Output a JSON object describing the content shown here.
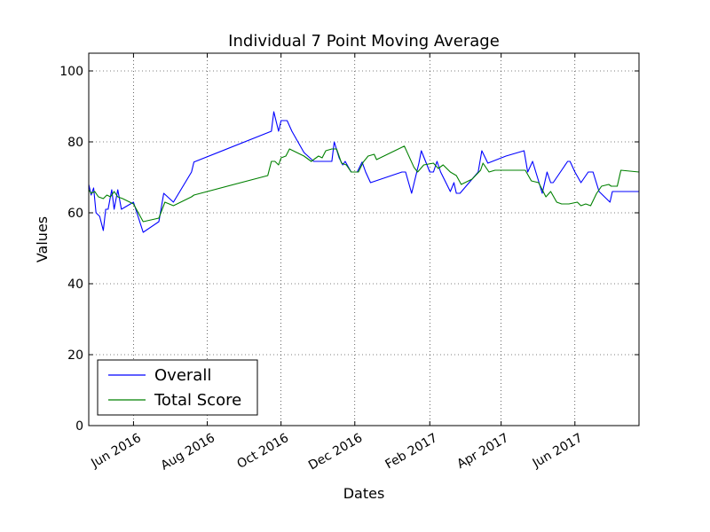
{
  "chart_data": {
    "type": "line",
    "title": "Individual 7 Point Moving Average",
    "xlabel": "Dates",
    "ylabel": "Values",
    "xlim": [
      "2016-04-25",
      "2017-07-24"
    ],
    "ylim": [
      0,
      105
    ],
    "x_ticks": [
      {
        "date": "2016-06-01",
        "label": "Jun 2016"
      },
      {
        "date": "2016-08-01",
        "label": "Aug 2016"
      },
      {
        "date": "2016-10-01",
        "label": "Oct 2016"
      },
      {
        "date": "2016-12-01",
        "label": "Dec 2016"
      },
      {
        "date": "2017-02-01",
        "label": "Feb 2017"
      },
      {
        "date": "2017-04-01",
        "label": "Apr 2017"
      },
      {
        "date": "2017-06-01",
        "label": "Jun 2017"
      }
    ],
    "y_ticks": [
      0,
      20,
      40,
      60,
      80,
      100
    ],
    "grid": true,
    "legend_position": "lower-left",
    "series": [
      {
        "name": "Overall",
        "color": "#0000ff",
        "points": [
          [
            "2016-04-25",
            68
          ],
          [
            "2016-04-27",
            65
          ],
          [
            "2016-04-29",
            67
          ],
          [
            "2016-05-01",
            60
          ],
          [
            "2016-05-04",
            59
          ],
          [
            "2016-05-07",
            55
          ],
          [
            "2016-05-09",
            61
          ],
          [
            "2016-05-11",
            61
          ],
          [
            "2016-05-14",
            66.5
          ],
          [
            "2016-05-16",
            61
          ],
          [
            "2016-05-19",
            66.5
          ],
          [
            "2016-05-22",
            61
          ],
          [
            "2016-06-01",
            63
          ],
          [
            "2016-06-09",
            54.5
          ],
          [
            "2016-06-22",
            57.5
          ],
          [
            "2016-06-26",
            65.5
          ],
          [
            "2016-07-04",
            63
          ],
          [
            "2016-07-19",
            71.5
          ],
          [
            "2016-07-21",
            74.3
          ],
          [
            "2016-09-23",
            83
          ],
          [
            "2016-09-25",
            88.5
          ],
          [
            "2016-09-29",
            83
          ],
          [
            "2016-10-01",
            86
          ],
          [
            "2016-10-04",
            86
          ],
          [
            "2016-10-06",
            86
          ],
          [
            "2016-10-10",
            83
          ],
          [
            "2016-10-20",
            77
          ],
          [
            "2016-10-28",
            74.5
          ],
          [
            "2016-11-02",
            74.5
          ],
          [
            "2016-11-12",
            74.5
          ],
          [
            "2016-11-14",
            80
          ],
          [
            "2016-11-18",
            75.5
          ],
          [
            "2016-11-21",
            73.5
          ],
          [
            "2016-11-23",
            74.5
          ],
          [
            "2016-11-28",
            71.5
          ],
          [
            "2016-12-03",
            71.5
          ],
          [
            "2016-12-07",
            74.3
          ],
          [
            "2016-12-10",
            71.5
          ],
          [
            "2016-12-14",
            68.5
          ],
          [
            "2017-01-09",
            71.5
          ],
          [
            "2017-01-12",
            71.5
          ],
          [
            "2017-01-17",
            65.5
          ],
          [
            "2017-01-23",
            74
          ],
          [
            "2017-01-25",
            77.5
          ],
          [
            "2017-02-01",
            71.5
          ],
          [
            "2017-02-04",
            71.5
          ],
          [
            "2017-02-07",
            74.5
          ],
          [
            "2017-02-10",
            71.5
          ],
          [
            "2017-02-18",
            66
          ],
          [
            "2017-02-21",
            68.5
          ],
          [
            "2017-02-23",
            65.5
          ],
          [
            "2017-02-26",
            65.5
          ],
          [
            "2017-03-13",
            71.5
          ],
          [
            "2017-03-16",
            77.5
          ],
          [
            "2017-03-21",
            74
          ],
          [
            "2017-04-05",
            76
          ],
          [
            "2017-04-20",
            77.5
          ],
          [
            "2017-04-23",
            71.5
          ],
          [
            "2017-04-27",
            74.5
          ],
          [
            "2017-05-05",
            65.5
          ],
          [
            "2017-05-09",
            71.5
          ],
          [
            "2017-05-12",
            68.5
          ],
          [
            "2017-05-14",
            68.5
          ],
          [
            "2017-05-26",
            74.5
          ],
          [
            "2017-05-28",
            74.5
          ],
          [
            "2017-06-01",
            71.5
          ],
          [
            "2017-06-06",
            68.5
          ],
          [
            "2017-06-12",
            71.5
          ],
          [
            "2017-06-16",
            71.5
          ],
          [
            "2017-06-21",
            66
          ],
          [
            "2017-06-30",
            63
          ],
          [
            "2017-07-02",
            66
          ],
          [
            "2017-07-24",
            66
          ]
        ]
      },
      {
        "name": "Total Score",
        "color": "#008000",
        "points": [
          [
            "2016-04-25",
            66.5
          ],
          [
            "2016-04-27",
            65.5
          ],
          [
            "2016-04-30",
            66
          ],
          [
            "2016-05-03",
            64.5
          ],
          [
            "2016-05-07",
            64
          ],
          [
            "2016-05-10",
            65
          ],
          [
            "2016-05-13",
            64.5
          ],
          [
            "2016-05-16",
            66
          ],
          [
            "2016-05-19",
            64.5
          ],
          [
            "2016-05-23",
            64
          ],
          [
            "2016-06-01",
            62.5
          ],
          [
            "2016-06-09",
            57.5
          ],
          [
            "2016-06-22",
            58.5
          ],
          [
            "2016-06-27",
            63
          ],
          [
            "2016-07-04",
            62
          ],
          [
            "2016-07-19",
            64.5
          ],
          [
            "2016-07-21",
            65
          ],
          [
            "2016-09-20",
            70.5
          ],
          [
            "2016-09-23",
            74.5
          ],
          [
            "2016-09-26",
            74.5
          ],
          [
            "2016-09-29",
            73.5
          ],
          [
            "2016-10-01",
            75.5
          ],
          [
            "2016-10-05",
            76
          ],
          [
            "2016-10-08",
            78
          ],
          [
            "2016-10-20",
            76
          ],
          [
            "2016-10-26",
            74.5
          ],
          [
            "2016-11-01",
            76
          ],
          [
            "2016-11-04",
            75.5
          ],
          [
            "2016-11-07",
            77.5
          ],
          [
            "2016-11-12",
            78
          ],
          [
            "2016-11-16",
            78
          ],
          [
            "2016-11-20",
            74
          ],
          [
            "2016-11-24",
            73.5
          ],
          [
            "2016-11-28",
            71.5
          ],
          [
            "2016-12-04",
            71.5
          ],
          [
            "2016-12-08",
            74.3
          ],
          [
            "2016-12-12",
            76
          ],
          [
            "2016-12-17",
            76.5
          ],
          [
            "2016-12-19",
            75
          ],
          [
            "2017-01-11",
            78.8
          ],
          [
            "2017-01-19",
            72.8
          ],
          [
            "2017-01-22",
            71.5
          ],
          [
            "2017-01-27",
            73.5
          ],
          [
            "2017-02-04",
            74
          ],
          [
            "2017-02-08",
            72.5
          ],
          [
            "2017-02-12",
            73.5
          ],
          [
            "2017-02-18",
            71.5
          ],
          [
            "2017-02-23",
            70.5
          ],
          [
            "2017-02-27",
            68
          ],
          [
            "2017-03-08",
            69.5
          ],
          [
            "2017-03-15",
            72
          ],
          [
            "2017-03-17",
            74
          ],
          [
            "2017-03-22",
            71.5
          ],
          [
            "2017-03-27",
            72
          ],
          [
            "2017-04-21",
            72
          ],
          [
            "2017-04-26",
            69
          ],
          [
            "2017-05-02",
            68.5
          ],
          [
            "2017-05-08",
            64.5
          ],
          [
            "2017-05-12",
            66
          ],
          [
            "2017-05-17",
            63
          ],
          [
            "2017-05-21",
            62.5
          ],
          [
            "2017-05-27",
            62.5
          ],
          [
            "2017-06-03",
            63
          ],
          [
            "2017-06-06",
            62
          ],
          [
            "2017-06-10",
            62.5
          ],
          [
            "2017-06-14",
            62
          ],
          [
            "2017-06-19",
            65.5
          ],
          [
            "2017-06-23",
            67.5
          ],
          [
            "2017-06-29",
            68
          ],
          [
            "2017-07-01",
            67.5
          ],
          [
            "2017-07-06",
            67.5
          ],
          [
            "2017-07-09",
            72
          ],
          [
            "2017-07-24",
            71.5
          ]
        ]
      }
    ]
  }
}
